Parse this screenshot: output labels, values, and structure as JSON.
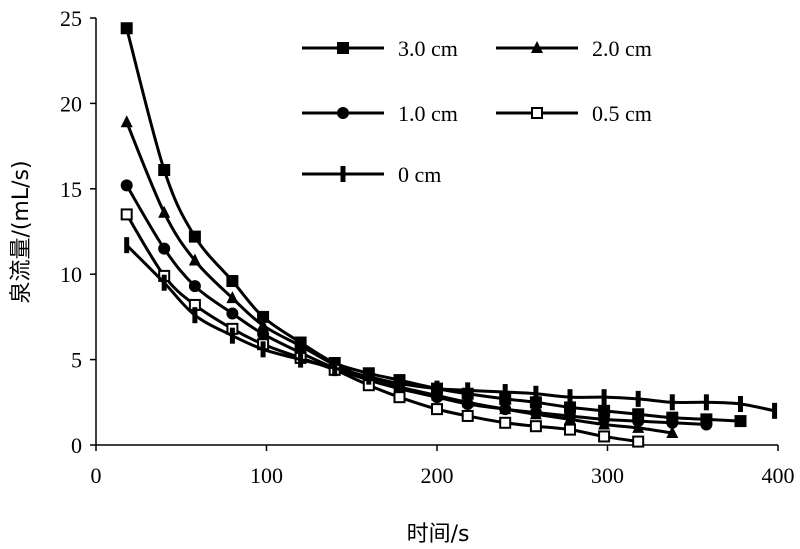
{
  "chart_data": {
    "type": "line",
    "title": "",
    "xlabel": "时间/s",
    "ylabel": "泉流量/(mL/s)",
    "xlim": [
      0,
      400
    ],
    "ylim": [
      0,
      25
    ],
    "xticks": [
      0,
      100,
      200,
      300,
      400
    ],
    "yticks": [
      0,
      5,
      10,
      15,
      20,
      25
    ],
    "grid": false,
    "legend_position": "top-right",
    "color": "#000000",
    "series": [
      {
        "name": "3.0 cm",
        "marker": "square-filled",
        "x": [
          18,
          40,
          58,
          80,
          98,
          120,
          140,
          160,
          178,
          200,
          218,
          240,
          258,
          278,
          298,
          318,
          338,
          358,
          378
        ],
        "values": [
          24.4,
          16.1,
          12.2,
          9.6,
          7.5,
          6.0,
          4.8,
          4.2,
          3.8,
          3.3,
          3.0,
          2.7,
          2.5,
          2.2,
          2.0,
          1.8,
          1.6,
          1.5,
          1.4
        ]
      },
      {
        "name": "2.0 cm",
        "marker": "triangle-filled",
        "x": [
          18,
          40,
          58,
          80,
          98,
          120,
          140,
          160,
          178,
          200,
          218,
          240,
          258,
          278,
          298,
          318,
          338
        ],
        "values": [
          18.9,
          13.6,
          10.8,
          8.6,
          7.0,
          5.8,
          4.7,
          3.9,
          3.4,
          2.9,
          2.5,
          2.1,
          1.8,
          1.5,
          1.2,
          1.0,
          0.7
        ]
      },
      {
        "name": "1.0 cm",
        "marker": "circle-filled",
        "x": [
          18,
          40,
          58,
          80,
          98,
          120,
          140,
          160,
          178,
          200,
          218,
          240,
          258,
          278,
          298,
          318,
          338,
          358
        ],
        "values": [
          15.2,
          11.5,
          9.3,
          7.7,
          6.5,
          5.4,
          4.5,
          3.8,
          3.3,
          2.8,
          2.4,
          2.1,
          1.9,
          1.7,
          1.5,
          1.4,
          1.3,
          1.2
        ]
      },
      {
        "name": "0.5 cm",
        "marker": "square-open",
        "x": [
          18,
          40,
          58,
          80,
          98,
          120,
          140,
          160,
          178,
          200,
          218,
          240,
          258,
          278,
          298,
          318
        ],
        "values": [
          13.5,
          9.9,
          8.2,
          6.8,
          5.9,
          5.1,
          4.4,
          3.5,
          2.8,
          2.1,
          1.7,
          1.3,
          1.1,
          0.9,
          0.5,
          0.2
        ]
      },
      {
        "name": "0 cm",
        "marker": "bar",
        "x": [
          18,
          40,
          58,
          80,
          98,
          120,
          140,
          160,
          178,
          200,
          218,
          240,
          258,
          278,
          298,
          318,
          338,
          358,
          378,
          398
        ],
        "values": [
          11.7,
          9.5,
          7.6,
          6.4,
          5.6,
          5.0,
          4.5,
          4.0,
          3.6,
          3.3,
          3.2,
          3.1,
          3.0,
          2.8,
          2.8,
          2.7,
          2.5,
          2.5,
          2.4,
          2.0
        ]
      }
    ]
  }
}
